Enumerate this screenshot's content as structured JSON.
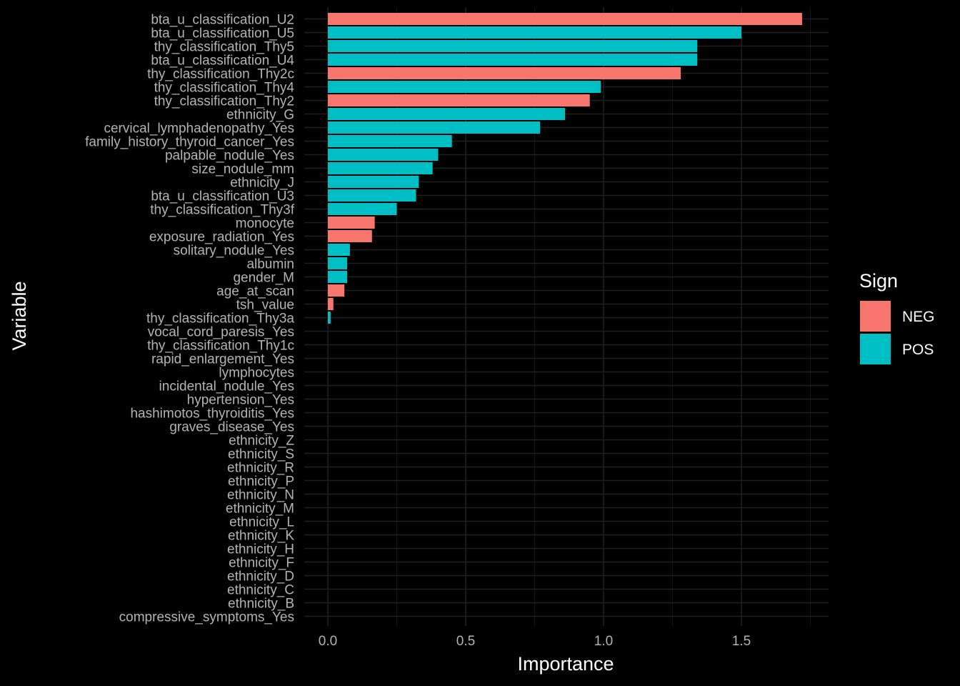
{
  "chart_data": {
    "type": "bar",
    "orientation": "horizontal",
    "xlabel": "Importance",
    "ylabel": "Variable",
    "xlim": [
      -0.07,
      1.8
    ],
    "x_ticks": [
      "0.0",
      "0.5",
      "1.0",
      "1.5"
    ],
    "x_tick_values": [
      0,
      0.5,
      1.0,
      1.5
    ],
    "grid": true,
    "legend": {
      "title": "Sign",
      "placement": "right",
      "entries": [
        {
          "label": "NEG",
          "color": "#F8766D"
        },
        {
          "label": "POS",
          "color": "#00BFC4"
        }
      ]
    },
    "categories": [
      "bta_u_classification_U2",
      "bta_u_classification_U5",
      "thy_classification_Thy5",
      "bta_u_classification_U4",
      "thy_classification_Thy2c",
      "thy_classification_Thy4",
      "thy_classification_Thy2",
      "ethnicity_G",
      "cervical_lymphadenopathy_Yes",
      "family_history_thyroid_cancer_Yes",
      "palpable_nodule_Yes",
      "size_nodule_mm",
      "ethnicity_J",
      "bta_u_classification_U3",
      "thy_classification_Thy3f",
      "monocyte",
      "exposure_radiation_Yes",
      "solitary_nodule_Yes",
      "albumin",
      "gender_M",
      "age_at_scan",
      "tsh_value",
      "thy_classification_Thy3a",
      "vocal_cord_paresis_Yes",
      "thy_classification_Thy1c",
      "rapid_enlargement_Yes",
      "lymphocytes",
      "incidental_nodule_Yes",
      "hypertension_Yes",
      "hashimotos_thyroiditis_Yes",
      "graves_disease_Yes",
      "ethnicity_Z",
      "ethnicity_S",
      "ethnicity_R",
      "ethnicity_P",
      "ethnicity_N",
      "ethnicity_M",
      "ethnicity_L",
      "ethnicity_K",
      "ethnicity_H",
      "ethnicity_F",
      "ethnicity_D",
      "ethnicity_C",
      "ethnicity_B",
      "compressive_symptoms_Yes"
    ],
    "values": [
      1.72,
      1.5,
      1.34,
      1.34,
      1.28,
      0.99,
      0.95,
      0.86,
      0.77,
      0.45,
      0.4,
      0.38,
      0.33,
      0.32,
      0.25,
      0.17,
      0.16,
      0.08,
      0.07,
      0.07,
      0.06,
      0.02,
      0.01,
      0,
      0,
      0,
      0,
      0,
      0,
      0,
      0,
      0,
      0,
      0,
      0,
      0,
      0,
      0,
      0,
      0,
      0,
      0,
      0,
      0,
      0
    ],
    "signs": [
      "NEG",
      "POS",
      "POS",
      "POS",
      "NEG",
      "POS",
      "NEG",
      "POS",
      "POS",
      "POS",
      "POS",
      "POS",
      "POS",
      "POS",
      "POS",
      "NEG",
      "NEG",
      "POS",
      "POS",
      "POS",
      "NEG",
      "NEG",
      "POS",
      "POS",
      "POS",
      "POS",
      "POS",
      "POS",
      "POS",
      "POS",
      "POS",
      "POS",
      "POS",
      "POS",
      "POS",
      "POS",
      "POS",
      "POS",
      "POS",
      "POS",
      "POS",
      "POS",
      "POS",
      "POS",
      "POS"
    ],
    "colors": {
      "NEG": "#F8766D",
      "POS": "#00BFC4"
    }
  }
}
